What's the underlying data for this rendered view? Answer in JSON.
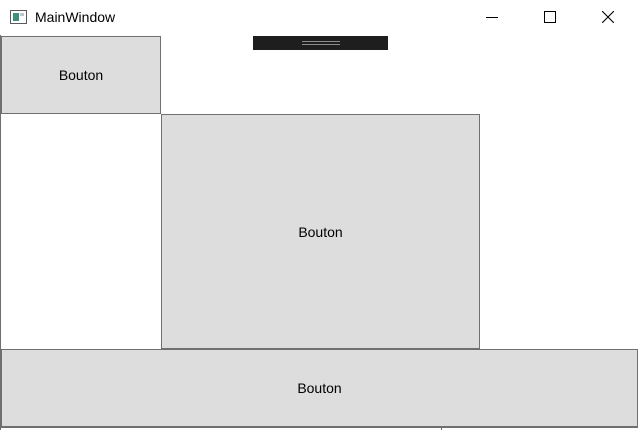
{
  "window": {
    "title": "MainWindow",
    "icon": "app-window-icon"
  },
  "caption_buttons": {
    "minimize_icon": "minimize-icon",
    "maximize_icon": "maximize-icon",
    "close_icon": "close-icon"
  },
  "debug_toolbar": {
    "icon": "drag-grip-icon"
  },
  "buttons": [
    {
      "label": "Bouton"
    },
    {
      "label": "Bouton"
    },
    {
      "label": "Bouton"
    }
  ],
  "colors": {
    "button_background": "#dddddd",
    "button_border": "#707070",
    "debug_toolbar": "#1e1e1e"
  }
}
